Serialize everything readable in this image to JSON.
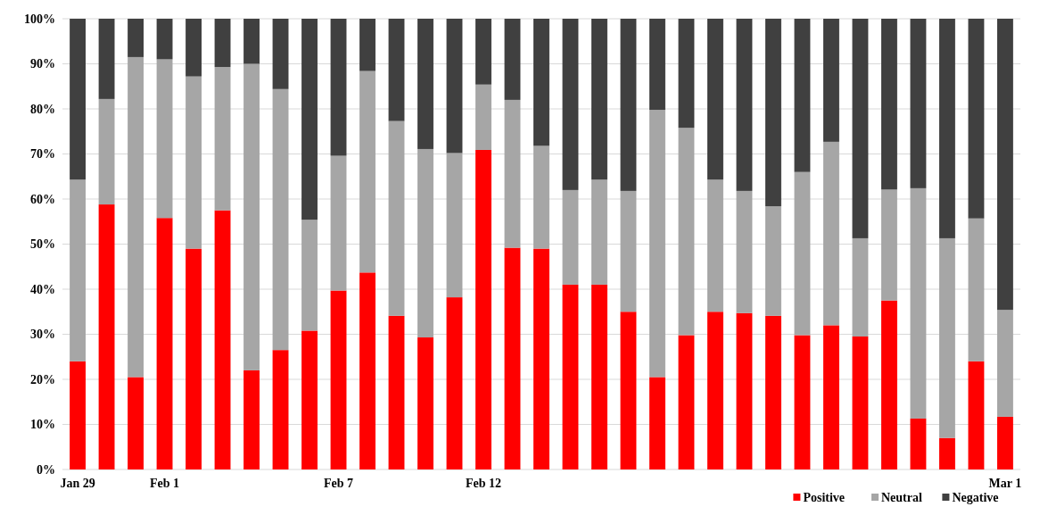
{
  "chart_data": {
    "type": "bar",
    "stacked": true,
    "categories": [
      "Jan 29",
      null,
      null,
      "Feb 1",
      null,
      null,
      null,
      null,
      null,
      "Feb 7",
      null,
      null,
      null,
      null,
      "Feb 12",
      null,
      null,
      null,
      null,
      null,
      null,
      null,
      null,
      null,
      null,
      null,
      null,
      null,
      null,
      null,
      null,
      null,
      "Mar 1"
    ],
    "series": [
      {
        "name": "Positive",
        "color": "#ff0000",
        "values": [
          24,
          58.8,
          20.5,
          55.8,
          49,
          57.5,
          22,
          26.5,
          30.8,
          39.7,
          43.7,
          34.1,
          29.3,
          38.2,
          70.9,
          49.2,
          49,
          41,
          41,
          35,
          20.5,
          29.8,
          35,
          34.7,
          34.1,
          29.8,
          32,
          29.5,
          37.5,
          11.3,
          7,
          24,
          11.7
        ]
      },
      {
        "name": "Neutral",
        "color": "#a6a6a6",
        "values": [
          40.3,
          23.4,
          71,
          35.2,
          38.2,
          31.8,
          68,
          57.9,
          24.6,
          29.9,
          44.7,
          43.2,
          41.8,
          32,
          14.5,
          32.8,
          22.8,
          21,
          23.3,
          26.8,
          59.3,
          46,
          29.3,
          27.1,
          24.3,
          36.2,
          40.7,
          21.8,
          24.6,
          51.1,
          44.3,
          31.7,
          23.7
        ]
      },
      {
        "name": "Negative",
        "color": "#404040",
        "values": [
          35.7,
          17.8,
          8.5,
          9,
          12.8,
          10.7,
          10,
          15.6,
          44.6,
          30.4,
          11.6,
          22.7,
          28.9,
          29.8,
          14.6,
          18,
          28.2,
          38,
          35.7,
          38.2,
          20.2,
          24.2,
          35.7,
          38.2,
          41.6,
          34,
          27.3,
          48.7,
          37.9,
          37.6,
          48.7,
          44.3,
          64.6
        ]
      }
    ],
    "ylim": [
      0,
      100
    ],
    "yticks": [
      {
        "value": 0,
        "label": "0%"
      },
      {
        "value": 10,
        "label": "10%"
      },
      {
        "value": 20,
        "label": "20%"
      },
      {
        "value": 30,
        "label": "30%"
      },
      {
        "value": 40,
        "label": "40%"
      },
      {
        "value": 50,
        "label": "50%"
      },
      {
        "value": 60,
        "label": "60%"
      },
      {
        "value": 70,
        "label": "70%"
      },
      {
        "value": 80,
        "label": "80%"
      },
      {
        "value": 90,
        "label": "90%"
      },
      {
        "value": 100,
        "label": "100%"
      }
    ],
    "grid": "y",
    "legend": "bottom right"
  }
}
